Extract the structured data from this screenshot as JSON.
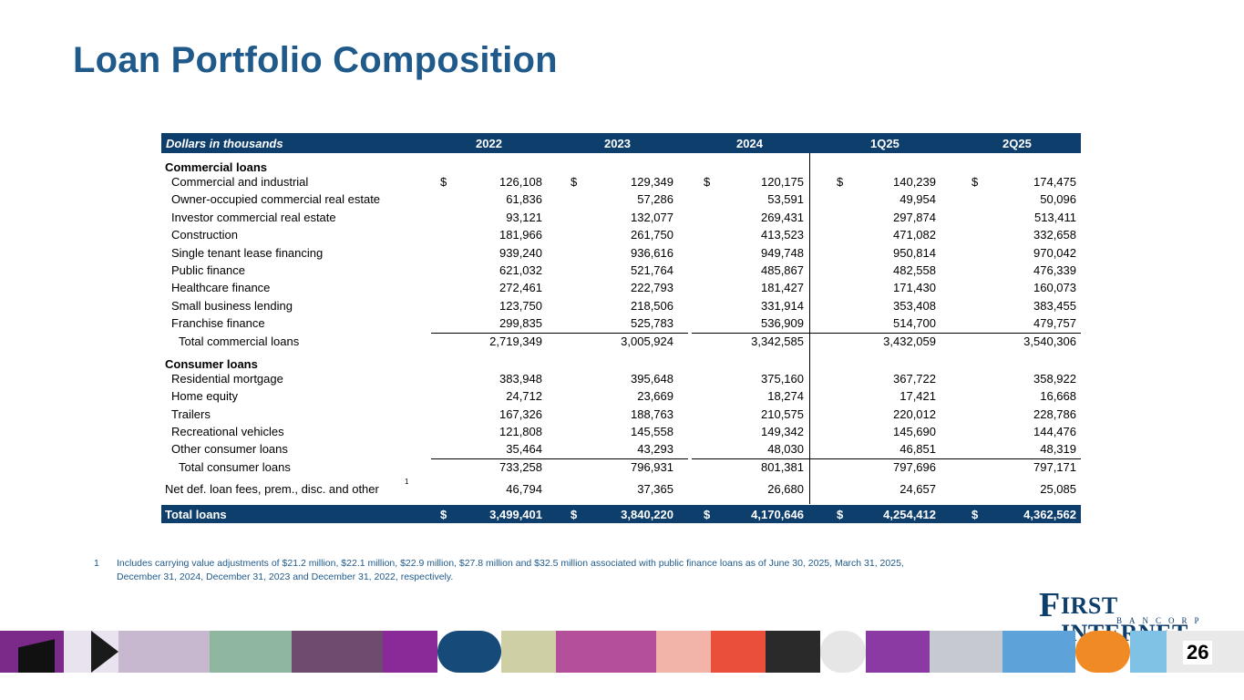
{
  "title": "Loan Portfolio Composition",
  "header": {
    "label": "Dollars in thousands",
    "cols": [
      "2022",
      "2023",
      "2024",
      "1Q25",
      "2Q25"
    ]
  },
  "rows": [
    {
      "label": "Commercial loans",
      "type": "section",
      "values": []
    },
    {
      "label": "Commercial and industrial",
      "type": "item",
      "dollar": true,
      "values": [
        "126,108",
        "129,349",
        "120,175",
        "140,239",
        "174,475"
      ]
    },
    {
      "label": "Owner-occupied commercial real estate",
      "type": "item",
      "values": [
        "61,836",
        "57,286",
        "53,591",
        "49,954",
        "50,096"
      ]
    },
    {
      "label": "Investor commercial real estate",
      "type": "item",
      "values": [
        "93,121",
        "132,077",
        "269,431",
        "297,874",
        "513,411"
      ]
    },
    {
      "label": "Construction",
      "type": "item",
      "values": [
        "181,966",
        "261,750",
        "413,523",
        "471,082",
        "332,658"
      ]
    },
    {
      "label": "Single tenant lease financing",
      "type": "item",
      "values": [
        "939,240",
        "936,616",
        "949,748",
        "950,814",
        "970,042"
      ]
    },
    {
      "label": "Public finance",
      "type": "item",
      "values": [
        "621,032",
        "521,764",
        "485,867",
        "482,558",
        "476,339"
      ]
    },
    {
      "label": "Healthcare finance",
      "type": "item",
      "values": [
        "272,461",
        "222,793",
        "181,427",
        "171,430",
        "160,073"
      ]
    },
    {
      "label": "Small business lending",
      "type": "item",
      "values": [
        "123,750",
        "218,506",
        "331,914",
        "353,408",
        "383,455"
      ]
    },
    {
      "label": "Franchise finance",
      "type": "item",
      "values": [
        "299,835",
        "525,783",
        "536,909",
        "514,700",
        "479,757"
      ]
    },
    {
      "label": "Total commercial loans",
      "type": "total",
      "values": [
        "2,719,349",
        "3,005,924",
        "3,342,585",
        "3,432,059",
        "3,540,306"
      ]
    },
    {
      "label": "Consumer loans",
      "type": "section",
      "values": []
    },
    {
      "label": "Residential mortgage",
      "type": "item",
      "values": [
        "383,948",
        "395,648",
        "375,160",
        "367,722",
        "358,922"
      ]
    },
    {
      "label": "Home equity",
      "type": "item",
      "values": [
        "24,712",
        "23,669",
        "18,274",
        "17,421",
        "16,668"
      ]
    },
    {
      "label": "Trailers",
      "type": "item",
      "values": [
        "167,326",
        "188,763",
        "210,575",
        "220,012",
        "228,786"
      ]
    },
    {
      "label": "Recreational vehicles",
      "type": "item",
      "values": [
        "121,808",
        "145,558",
        "149,342",
        "145,690",
        "144,476"
      ]
    },
    {
      "label": "Other consumer loans",
      "type": "item",
      "values": [
        "35,464",
        "43,293",
        "48,030",
        "46,851",
        "48,319"
      ]
    },
    {
      "label": "Total consumer loans",
      "type": "total",
      "values": [
        "733,258",
        "796,931",
        "801,381",
        "797,696",
        "797,171"
      ]
    },
    {
      "label": "Net def. loan fees, prem., disc. and other",
      "sup": "1",
      "type": "net",
      "values": [
        "46,794",
        "37,365",
        "26,680",
        "24,657",
        "25,085"
      ]
    }
  ],
  "total_row": {
    "label": "Total loans",
    "currency": "$",
    "values": [
      "3,499,401",
      "3,840,220",
      "4,170,646",
      "4,254,412",
      "4,362,562"
    ]
  },
  "dollar_sign": "$",
  "footnote": {
    "num": "1",
    "text": "Includes carrying value adjustments of $21.2 million, $22.1 million, $22.9 million, $27.8 million and $32.5 million associated with public finance loans as of June 30, 2025, March 31, 2025, December 31, 2024, December 31, 2023 and December 31, 2022, respectively."
  },
  "logo": {
    "initial": "F",
    "name": "IRST INTERNET",
    "sub": "BANCORP"
  },
  "page_number": "26",
  "colors": {
    "title": "#1f5a8a",
    "header_bg": "#0e3e6c"
  }
}
